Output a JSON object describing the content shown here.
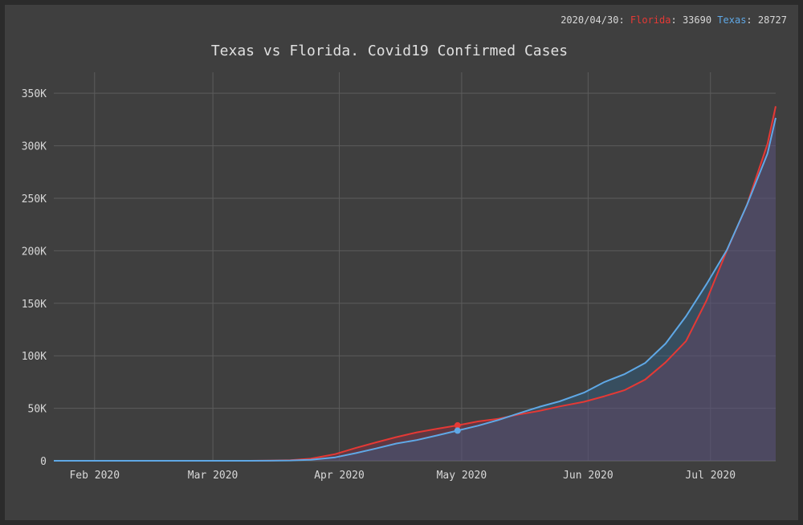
{
  "tooltip": {
    "date": "2020/04/30",
    "florida_label": "Florida",
    "florida_value": "33690",
    "texas_label": "Texas",
    "texas_value": "28727"
  },
  "colors": {
    "florida": "#e53935",
    "texas": "#5fa8e6",
    "background": "#3f3f3f",
    "grid": "#5c5c5c"
  },
  "chart_data": {
    "type": "area",
    "title": "Texas vs Florida. Covid19 Confirmed Cases",
    "xlabel": "",
    "ylabel": "",
    "x_range": [
      "2020-01-22",
      "2020-07-17"
    ],
    "ylim": [
      0,
      370000
    ],
    "grid": true,
    "x_ticks": [
      {
        "date": "2020-02-01",
        "label": "Feb 2020"
      },
      {
        "date": "2020-03-01",
        "label": "Mar 2020"
      },
      {
        "date": "2020-04-01",
        "label": "Apr 2020"
      },
      {
        "date": "2020-05-01",
        "label": "May 2020"
      },
      {
        "date": "2020-06-01",
        "label": "Jun 2020"
      },
      {
        "date": "2020-07-01",
        "label": "Jul 2020"
      }
    ],
    "y_ticks": [
      {
        "value": 0,
        "label": "0"
      },
      {
        "value": 50000,
        "label": "50K"
      },
      {
        "value": 100000,
        "label": "100K"
      },
      {
        "value": 150000,
        "label": "150K"
      },
      {
        "value": 200000,
        "label": "200K"
      },
      {
        "value": 250000,
        "label": "250K"
      },
      {
        "value": 300000,
        "label": "300K"
      },
      {
        "value": 350000,
        "label": "350K"
      }
    ],
    "highlight_date": "2020-04-30",
    "series": [
      {
        "name": "Florida",
        "points": [
          [
            "2020-01-22",
            0
          ],
          [
            "2020-03-01",
            2
          ],
          [
            "2020-03-10",
            28
          ],
          [
            "2020-03-15",
            115
          ],
          [
            "2020-03-20",
            563
          ],
          [
            "2020-03-25",
            1977
          ],
          [
            "2020-03-31",
            6338
          ],
          [
            "2020-04-05",
            12151
          ],
          [
            "2020-04-10",
            17531
          ],
          [
            "2020-04-15",
            22519
          ],
          [
            "2020-04-20",
            27059
          ],
          [
            "2020-04-25",
            30533
          ],
          [
            "2020-04-30",
            33690
          ],
          [
            "2020-05-05",
            37439
          ],
          [
            "2020-05-10",
            40001
          ],
          [
            "2020-05-15",
            44138
          ],
          [
            "2020-05-20",
            47471
          ],
          [
            "2020-05-25",
            51746
          ],
          [
            "2020-05-31",
            56163
          ],
          [
            "2020-06-05",
            61488
          ],
          [
            "2020-06-10",
            67371
          ],
          [
            "2020-06-15",
            77326
          ],
          [
            "2020-06-20",
            93797
          ],
          [
            "2020-06-25",
            114018
          ],
          [
            "2020-06-30",
            152434
          ],
          [
            "2020-07-05",
            200111
          ],
          [
            "2020-07-10",
            244151
          ],
          [
            "2020-07-15",
            301810
          ],
          [
            "2020-07-17",
            337569
          ]
        ]
      },
      {
        "name": "Texas",
        "points": [
          [
            "2020-01-22",
            0
          ],
          [
            "2020-03-01",
            1
          ],
          [
            "2020-03-10",
            15
          ],
          [
            "2020-03-15",
            57
          ],
          [
            "2020-03-20",
            280
          ],
          [
            "2020-03-25",
            1002
          ],
          [
            "2020-03-31",
            3266
          ],
          [
            "2020-04-05",
            7276
          ],
          [
            "2020-04-10",
            11671
          ],
          [
            "2020-04-15",
            16455
          ],
          [
            "2020-04-20",
            19751
          ],
          [
            "2020-04-25",
            24153
          ],
          [
            "2020-04-30",
            28727
          ],
          [
            "2020-05-05",
            33369
          ],
          [
            "2020-05-10",
            38869
          ],
          [
            "2020-05-15",
            45198
          ],
          [
            "2020-05-20",
            51323
          ],
          [
            "2020-05-25",
            56560
          ],
          [
            "2020-05-31",
            64880
          ],
          [
            "2020-06-05",
            74978
          ],
          [
            "2020-06-10",
            82658
          ],
          [
            "2020-06-15",
            93206
          ],
          [
            "2020-06-20",
            111601
          ],
          [
            "2020-06-25",
            137624
          ],
          [
            "2020-06-30",
            168062
          ],
          [
            "2020-07-05",
            200557
          ],
          [
            "2020-07-10",
            243961
          ],
          [
            "2020-07-15",
            292656
          ],
          [
            "2020-07-17",
            326500
          ]
        ]
      }
    ]
  }
}
